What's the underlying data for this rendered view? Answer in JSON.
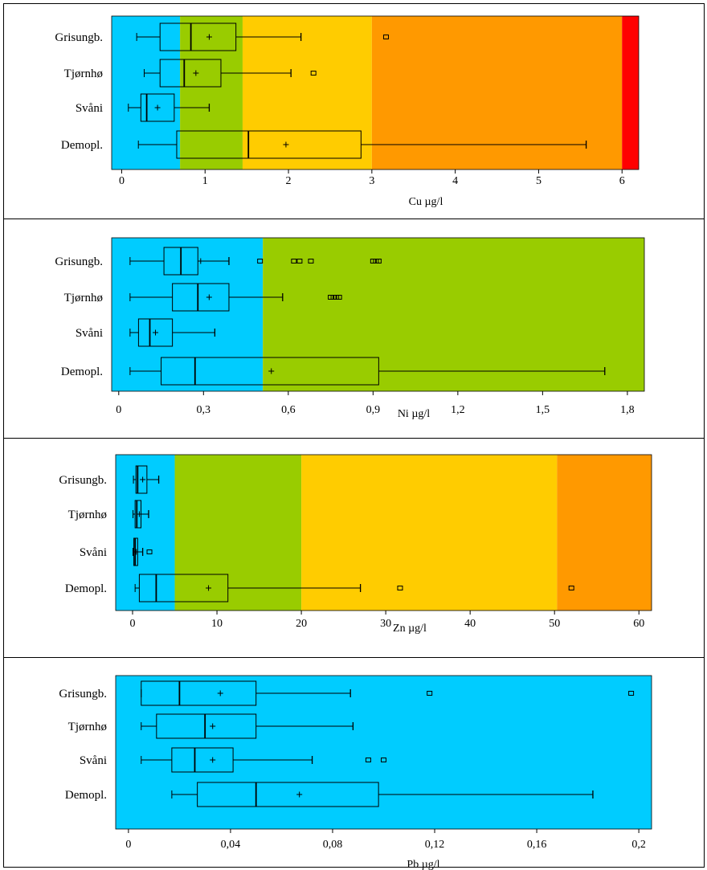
{
  "chart_data": [
    {
      "type": "box",
      "xlabel": "Cu µg/l",
      "xlim": [
        -0.12,
        6.2
      ],
      "ticks": [
        0,
        1,
        2,
        3,
        4,
        5,
        6
      ],
      "tick_labels": [
        "0",
        "1",
        "2",
        "3",
        "4",
        "5",
        "6"
      ],
      "class_bands": [
        {
          "from": -0.12,
          "to": 0.7,
          "color": "#00ccff"
        },
        {
          "from": 0.7,
          "to": 1.45,
          "color": "#99cc00"
        },
        {
          "from": 1.45,
          "to": 3.0,
          "color": "#ffcc00"
        },
        {
          "from": 3.0,
          "to": 6.0,
          "color": "#ff9900"
        },
        {
          "from": 6.0,
          "to": 6.2,
          "color": "#ff0000"
        }
      ],
      "categories": [
        "Grisungb.",
        "Tjørnhø",
        "Svåni",
        "Demopl."
      ],
      "boxes": [
        {
          "label": "Grisungb.",
          "min": 0.18,
          "q1": 0.46,
          "median": 0.83,
          "q3": 1.37,
          "max": 2.15,
          "mean": 1.05,
          "outliers": [
            3.17
          ]
        },
        {
          "label": "Tjørnhø",
          "min": 0.27,
          "q1": 0.46,
          "median": 0.75,
          "q3": 1.19,
          "max": 2.03,
          "mean": 0.89,
          "outliers": [
            2.3
          ]
        },
        {
          "label": "Svåni",
          "min": 0.08,
          "q1": 0.23,
          "median": 0.3,
          "q3": 0.63,
          "max": 1.05,
          "mean": 0.43,
          "outliers": []
        },
        {
          "label": "Demopl.",
          "min": 0.2,
          "q1": 0.66,
          "median": 1.52,
          "q3": 2.87,
          "max": 5.57,
          "mean": 1.97,
          "outliers": []
        }
      ]
    },
    {
      "type": "box",
      "xlabel": "Ni µg/l",
      "xlim": [
        -0.025,
        1.86
      ],
      "ticks": [
        0,
        0.3,
        0.6,
        0.9,
        1.2,
        1.5,
        1.8
      ],
      "tick_labels": [
        "0",
        "0,3",
        "0,6",
        "0,9",
        "1,2",
        "1,5",
        "1,8"
      ],
      "class_bands": [
        {
          "from": -0.025,
          "to": 0.51,
          "color": "#00ccff"
        },
        {
          "from": 0.51,
          "to": 1.86,
          "color": "#99cc00"
        }
      ],
      "categories": [
        "Grisungb.",
        "Tjørnhø",
        "Svåni",
        "Demopl."
      ],
      "boxes": [
        {
          "label": "Grisungb.",
          "min": 0.04,
          "q1": 0.16,
          "median": 0.22,
          "q3": 0.28,
          "max": 0.39,
          "mean": 0.29,
          "outliers": [
            0.5,
            0.62,
            0.64,
            0.68,
            0.9,
            0.91,
            0.92
          ]
        },
        {
          "label": "Tjørnhø",
          "min": 0.04,
          "q1": 0.19,
          "median": 0.28,
          "q3": 0.39,
          "max": 0.58,
          "mean": 0.32,
          "outliers": [
            0.75,
            0.76,
            0.77,
            0.78
          ]
        },
        {
          "label": "Svåni",
          "min": 0.04,
          "q1": 0.07,
          "median": 0.11,
          "q3": 0.19,
          "max": 0.34,
          "mean": 0.13,
          "outliers": []
        },
        {
          "label": "Demopl.",
          "min": 0.04,
          "q1": 0.15,
          "median": 0.27,
          "q3": 0.92,
          "max": 1.72,
          "mean": 0.54,
          "outliers": []
        }
      ]
    },
    {
      "type": "box",
      "xlabel": "Zn µg/l",
      "xlim": [
        -2,
        61.5
      ],
      "ticks": [
        0,
        10,
        20,
        30,
        40,
        50,
        60
      ],
      "tick_labels": [
        "0",
        "10",
        "20",
        "30",
        "40",
        "50",
        "60"
      ],
      "class_bands": [
        {
          "from": -2,
          "to": 5,
          "color": "#00ccff"
        },
        {
          "from": 5,
          "to": 20,
          "color": "#99cc00"
        },
        {
          "from": 20,
          "to": 50.3,
          "color": "#ffcc00"
        },
        {
          "from": 50.3,
          "to": 61.5,
          "color": "#ff9900"
        }
      ],
      "categories": [
        "Grisungb.",
        "Tjørnhø",
        "Svåni",
        "Demopl."
      ],
      "boxes": [
        {
          "label": "Grisungb.",
          "min": 0.1,
          "q1": 0.4,
          "median": 0.6,
          "q3": 1.7,
          "max": 3.1,
          "mean": 1.2,
          "outliers": []
        },
        {
          "label": "Tjørnhø",
          "min": 0.05,
          "q1": 0.3,
          "median": 0.5,
          "q3": 1.0,
          "max": 1.9,
          "mean": 0.8,
          "outliers": []
        },
        {
          "label": "Svåni",
          "min": 0.05,
          "q1": 0.15,
          "median": 0.3,
          "q3": 0.6,
          "max": 1.2,
          "mean": 0.45,
          "outliers": [
            2.0
          ]
        },
        {
          "label": "Demopl.",
          "min": 0.3,
          "q1": 0.8,
          "median": 2.8,
          "q3": 11.3,
          "max": 27.0,
          "mean": 9.0,
          "outliers": [
            31.7,
            52.0
          ]
        }
      ]
    },
    {
      "type": "box",
      "xlabel": "Pb µg/l",
      "xlim": [
        -0.005,
        0.205
      ],
      "ticks": [
        0,
        0.04,
        0.08,
        0.12,
        0.16,
        0.2
      ],
      "tick_labels": [
        "0",
        "0,04",
        "0,08",
        "0,12",
        "0,16",
        "0,2"
      ],
      "class_bands": [
        {
          "from": -0.005,
          "to": 0.205,
          "color": "#00ccff"
        }
      ],
      "categories": [
        "Grisungb.",
        "Tjørnhø",
        "Svåni",
        "Demopl."
      ],
      "boxes": [
        {
          "label": "Grisungb.",
          "min": 0.005,
          "q1": 0.005,
          "median": 0.02,
          "q3": 0.05,
          "max": 0.087,
          "mean": 0.036,
          "outliers": [
            0.118,
            0.197
          ]
        },
        {
          "label": "Tjørnhø",
          "min": 0.005,
          "q1": 0.011,
          "median": 0.03,
          "q3": 0.05,
          "max": 0.088,
          "mean": 0.033,
          "outliers": []
        },
        {
          "label": "Svåni",
          "min": 0.005,
          "q1": 0.017,
          "median": 0.026,
          "q3": 0.041,
          "max": 0.072,
          "mean": 0.033,
          "outliers": [
            0.094,
            0.1
          ]
        },
        {
          "label": "Demopl.",
          "min": 0.017,
          "q1": 0.027,
          "median": 0.05,
          "q3": 0.098,
          "max": 0.182,
          "mean": 0.067,
          "outliers": []
        }
      ]
    }
  ]
}
